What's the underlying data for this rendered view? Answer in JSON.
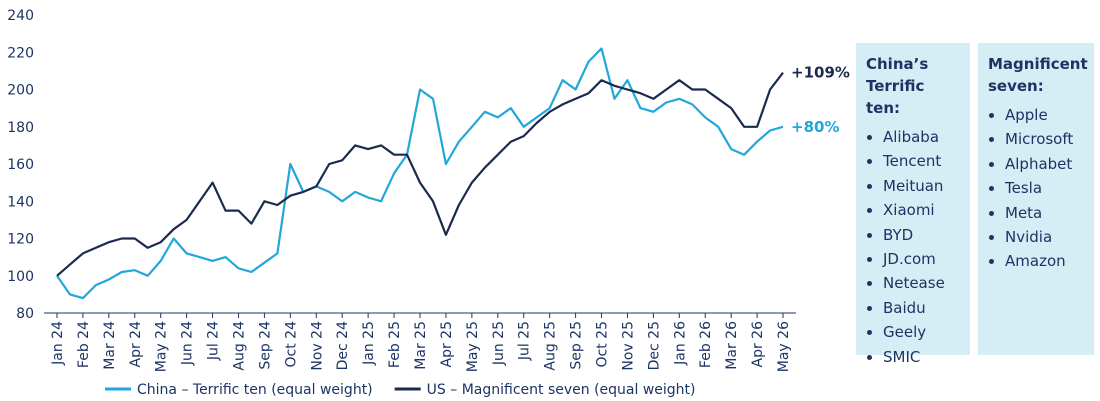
{
  "chart_data": {
    "type": "line",
    "x": [
      0,
      0.5,
      1,
      1.5,
      2,
      2.5,
      3,
      3.5,
      4,
      4.5,
      5,
      5.5,
      6,
      6.5,
      7,
      7.5,
      8,
      8.5,
      9,
      9.5,
      10,
      10.5,
      11,
      11.5,
      12,
      12.5,
      13,
      13.5,
      14,
      14.5,
      15,
      15.5,
      16,
      16.5,
      17,
      17.5,
      18,
      18.5,
      19,
      19.5,
      20,
      20.5,
      21,
      21.5,
      22,
      22.5,
      23,
      23.5,
      24,
      24.5,
      25,
      25.5,
      26,
      26.5,
      27,
      27.5,
      28
    ],
    "xlim": [
      -0.5,
      28.5
    ],
    "xticks": [
      {
        "value": 0,
        "label": "Jan 24"
      },
      {
        "value": 1,
        "label": "Feb 24"
      },
      {
        "value": 2,
        "label": "Mar 24"
      },
      {
        "value": 3,
        "label": "Apr 24"
      },
      {
        "value": 4,
        "label": "May 24"
      },
      {
        "value": 5,
        "label": "Jun 24"
      },
      {
        "value": 6,
        "label": "Jul 24"
      },
      {
        "value": 7,
        "label": "Aug 24"
      },
      {
        "value": 8,
        "label": "Sep 24"
      },
      {
        "value": 9,
        "label": "Oct 24"
      },
      {
        "value": 10,
        "label": "Nov 24"
      },
      {
        "value": 11,
        "label": "Dec 24"
      },
      {
        "value": 12,
        "label": "Jan 25"
      },
      {
        "value": 13,
        "label": "Feb 25"
      },
      {
        "value": 14,
        "label": "Mar 25"
      },
      {
        "value": 15,
        "label": "Apr 25"
      },
      {
        "value": 16,
        "label": "May 25"
      },
      {
        "value": 17,
        "label": "Jun 25"
      },
      {
        "value": 18,
        "label": "Jul 25"
      },
      {
        "value": 19,
        "label": "Aug 25"
      },
      {
        "value": 20,
        "label": "Sep 25"
      },
      {
        "value": 21,
        "label": "Oct 25"
      },
      {
        "value": 22,
        "label": "Nov 25"
      },
      {
        "value": 23,
        "label": "Dec 25"
      },
      {
        "value": 24,
        "label": "Jan 26"
      },
      {
        "value": 25,
        "label": "Feb 26"
      },
      {
        "value": 26,
        "label": "Mar 26"
      },
      {
        "value": 27,
        "label": "Apr 26"
      },
      {
        "value": 28,
        "label": "May 26"
      }
    ],
    "ylim": [
      80,
      240
    ],
    "yticks": [
      80,
      100,
      120,
      140,
      160,
      180,
      200,
      220,
      240
    ],
    "series": [
      {
        "name": "China – Terrific ten (equal weight)",
        "color": "#22a7d9",
        "end_label": "+80%",
        "values": [
          100,
          90,
          88,
          95,
          98,
          102,
          103,
          100,
          108,
          120,
          112,
          110,
          108,
          110,
          104,
          102,
          107,
          112,
          160,
          145,
          148,
          145,
          140,
          145,
          142,
          140,
          155,
          165,
          200,
          195,
          160,
          172,
          180,
          188,
          185,
          190,
          180,
          185,
          190,
          205,
          200,
          215,
          222,
          195,
          205,
          190,
          188,
          193,
          195,
          192,
          185,
          180,
          168,
          165,
          172,
          178,
          180
        ]
      },
      {
        "name": "US – Magnificent seven (equal weight)",
        "color": "#1b2b4d",
        "end_label": "+109%",
        "values": [
          100,
          106,
          112,
          115,
          118,
          120,
          120,
          115,
          118,
          125,
          130,
          140,
          150,
          135,
          135,
          128,
          140,
          138,
          143,
          145,
          148,
          160,
          162,
          170,
          168,
          170,
          165,
          165,
          150,
          140,
          122,
          138,
          150,
          158,
          165,
          172,
          175,
          182,
          188,
          192,
          195,
          198,
          205,
          202,
          200,
          198,
          195,
          200,
          205,
          200,
          200,
          195,
          190,
          180,
          180,
          200,
          209
        ]
      }
    ]
  },
  "panels": [
    {
      "title": "China’s Terrific ten:",
      "items": [
        "Alibaba",
        "Tencent",
        "Meituan",
        "Xiaomi",
        "BYD",
        "JD.com",
        "Netease",
        "Baidu",
        "Geely",
        "SMIC"
      ]
    },
    {
      "title": "Magnificent seven:",
      "items": [
        "Apple",
        "Microsoft",
        "Alphabet",
        "Tesla",
        "Meta",
        "Nvidia",
        "Amazon"
      ]
    }
  ]
}
